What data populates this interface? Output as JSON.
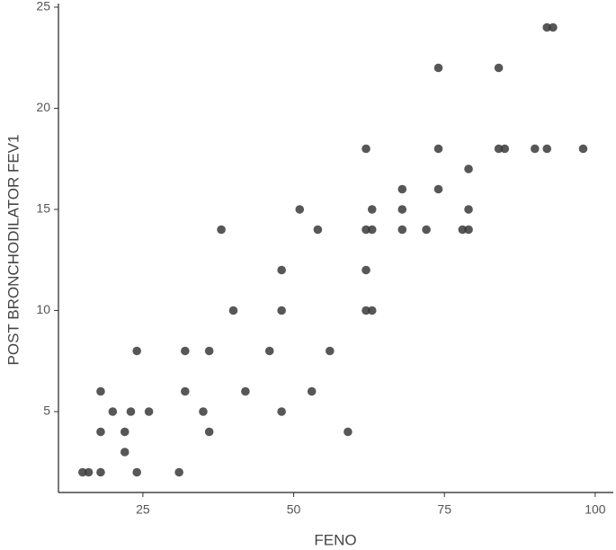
{
  "chart_data": {
    "type": "scatter",
    "x_label": "FENO",
    "y_label": "POST BRONCHODILATOR FEV1",
    "x": [
      15,
      16,
      18,
      18,
      18,
      20,
      22,
      22,
      23,
      24,
      24,
      26,
      31,
      32,
      32,
      35,
      36,
      36,
      38,
      40,
      42,
      46,
      48,
      48,
      48,
      51,
      53,
      54,
      56,
      59,
      62,
      62,
      62,
      62,
      63,
      63,
      63,
      68,
      68,
      68,
      72,
      74,
      74,
      74,
      78,
      79,
      79,
      79,
      84,
      84,
      85,
      90,
      92,
      93,
      92,
      98
    ],
    "values": [
      2,
      2,
      2,
      4,
      6,
      5,
      4,
      3,
      5,
      8,
      2,
      5,
      2,
      8,
      6,
      5,
      8,
      4,
      14,
      10,
      6,
      8,
      12,
      10,
      5,
      15,
      6,
      14,
      8,
      4,
      18,
      14,
      12,
      10,
      15,
      14,
      10,
      16,
      15,
      14,
      14,
      22,
      18,
      16,
      14,
      17,
      15,
      14,
      22,
      18,
      18,
      18,
      24,
      24,
      18,
      18
    ],
    "color": "#3a3a3a",
    "xlim": [
      11,
      103
    ],
    "ylim": [
      1,
      25
    ],
    "xticks": [
      25,
      50,
      75,
      100
    ],
    "yticks": [
      5,
      10,
      15,
      20,
      25
    ],
    "grid": false
  }
}
